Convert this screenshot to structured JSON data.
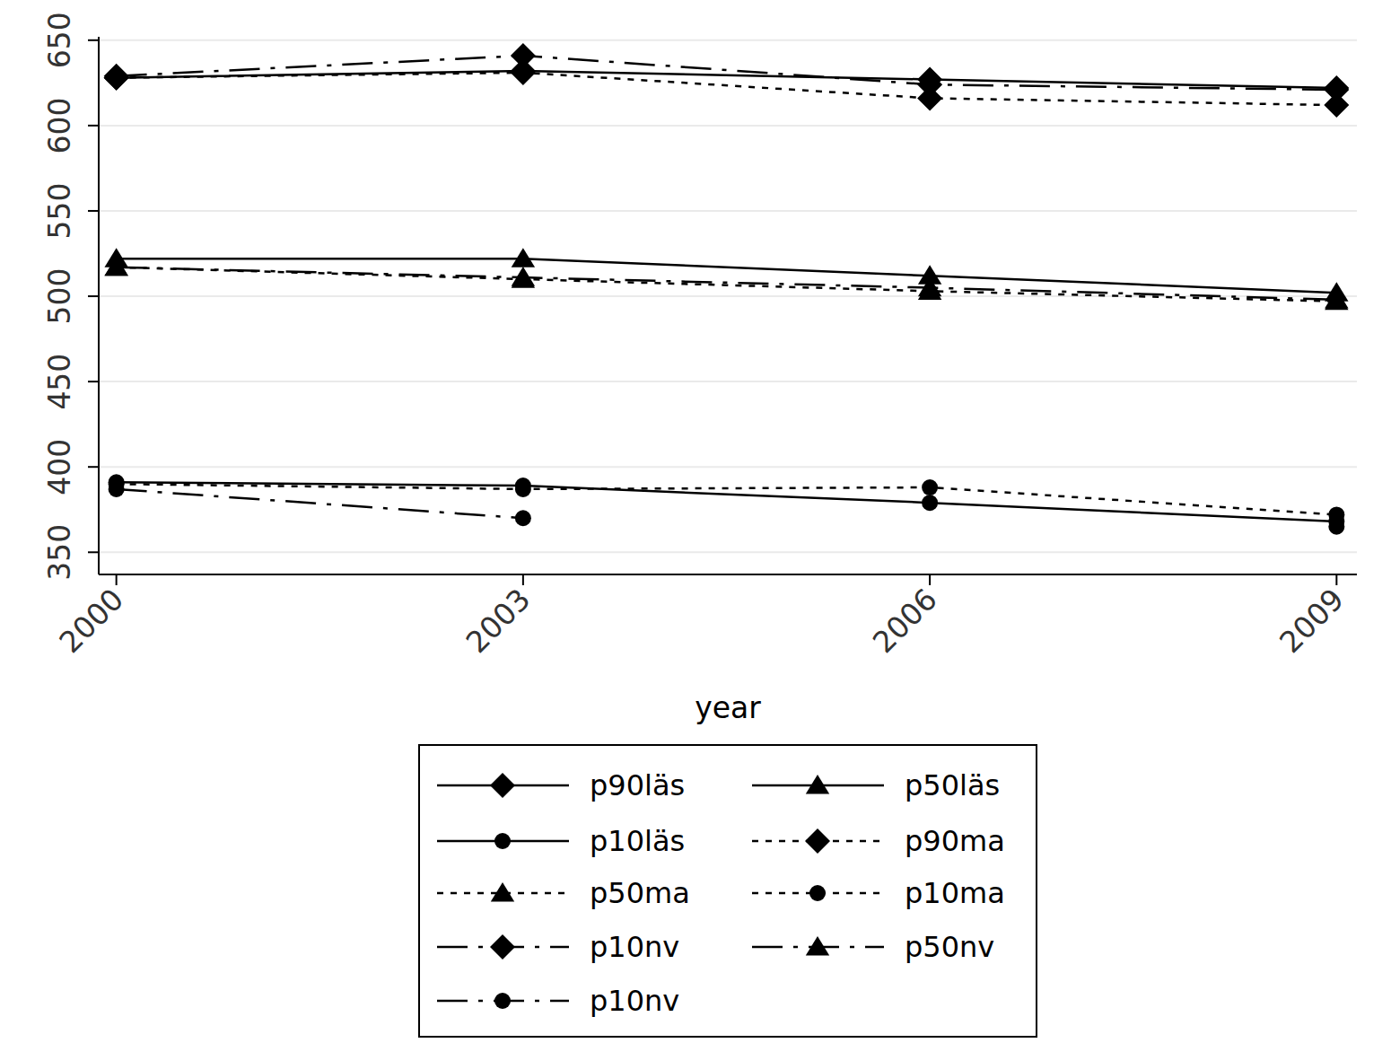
{
  "chart_data": {
    "type": "line",
    "x_label": "year",
    "x": [
      2000,
      2003,
      2006,
      2009
    ],
    "xlim": [
      1999.87,
      2009.15
    ],
    "xticks": [
      2000,
      2003,
      2006,
      2009
    ],
    "ylim": [
      337,
      652
    ],
    "yticks": [
      350,
      400,
      450,
      500,
      550,
      600,
      650
    ],
    "grid": true,
    "legend": "bottom",
    "series": [
      {
        "name": "p90läs",
        "color": "#000000",
        "marker": "diamond",
        "line_style": "solid",
        "values": [
          628,
          632,
          627,
          622
        ]
      },
      {
        "name": "p50läs",
        "color": "#000000",
        "marker": "triangle",
        "line_style": "solid",
        "values": [
          522,
          522,
          512,
          502
        ]
      },
      {
        "name": "p10läs",
        "color": "#000000",
        "marker": "circle",
        "line_style": "solid",
        "values": [
          391,
          389,
          379,
          368
        ]
      },
      {
        "name": "p90ma",
        "color": "#000000",
        "marker": "diamond",
        "line_style": "dotted",
        "values": [
          628,
          631,
          616,
          612
        ]
      },
      {
        "name": "p50ma",
        "color": "#000000",
        "marker": "triangle",
        "line_style": "dotted",
        "values": [
          517,
          510,
          503,
          497
        ]
      },
      {
        "name": "p10ma",
        "color": "#000000",
        "marker": "circle",
        "line_style": "dotted",
        "values": [
          390,
          387,
          388,
          372
        ]
      },
      {
        "name": "p10nv",
        "color": "#000000",
        "marker": "diamond",
        "line_style": "dashdot",
        "values": [
          629,
          641,
          624,
          621
        ]
      },
      {
        "name": "p50nv",
        "color": "#000000",
        "marker": "triangle",
        "line_style": "dashdot",
        "values": [
          517,
          511,
          505,
          498
        ]
      },
      {
        "name": "p10nv",
        "color": "#000000",
        "marker": "circle",
        "line_style": "dashdot",
        "values": [
          387,
          370,
          null,
          365
        ]
      }
    ]
  }
}
